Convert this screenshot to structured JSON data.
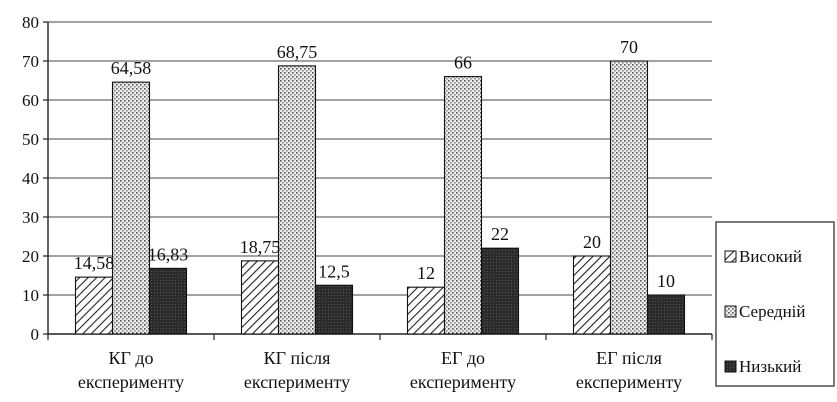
{
  "chart_data": {
    "type": "bar",
    "categories": [
      [
        "КГ до",
        "експерименту"
      ],
      [
        "КГ після",
        "експерименту"
      ],
      [
        "ЕГ до",
        "експерименту"
      ],
      [
        "ЕГ після",
        "експерименту"
      ]
    ],
    "series": [
      {
        "name": "Високий",
        "values": [
          14.58,
          18.75,
          12,
          20
        ],
        "labels": [
          "14,58",
          "18,75",
          "12",
          "20"
        ],
        "pattern": "diagonal-hatch"
      },
      {
        "name": "Середній",
        "values": [
          64.58,
          68.75,
          66,
          70
        ],
        "labels": [
          "64,58",
          "68,75",
          "66",
          "70"
        ],
        "pattern": "dotted"
      },
      {
        "name": "Низький",
        "values": [
          16.83,
          12.5,
          22,
          10
        ],
        "labels": [
          "16,83",
          "12,5",
          "22",
          "10"
        ],
        "pattern": "dark"
      }
    ],
    "ylim": [
      0,
      80
    ],
    "yticks": [
      "0",
      "10",
      "20",
      "30",
      "40",
      "50",
      "60",
      "70",
      "80"
    ],
    "grid": true,
    "legend_position": "right"
  }
}
